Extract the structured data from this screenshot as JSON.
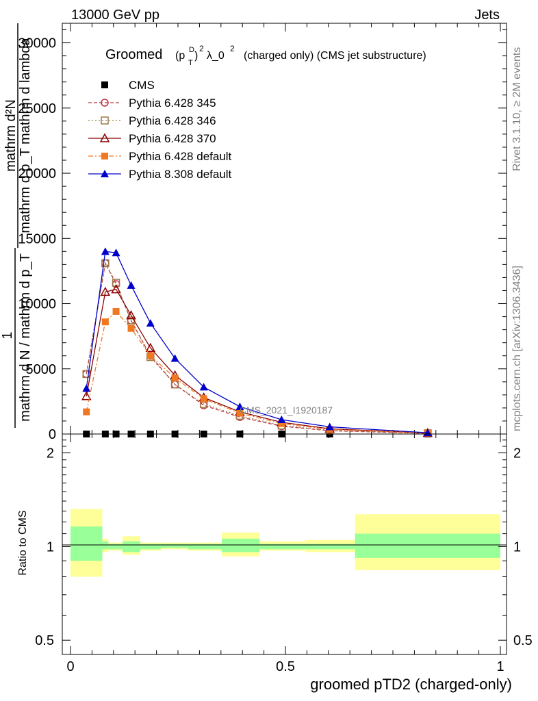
{
  "header": {
    "energy_label": "13000 GeV pp",
    "category_label": "Jets",
    "title_prefix": "Groomed",
    "title_formula": "(p",
    "title_sup_d": "D",
    "title_sub_t": "T",
    "title_close": ")",
    "title_sq": "2",
    "title_lambda": "λ_0",
    "title_lambda_sq": "2",
    "title_suffix": "(charged only) (CMS jet substructure)",
    "analysis_tag": "CMS_2021_I1920187"
  },
  "side_labels": {
    "rivet": "Rivet 3.1.10, ≥ 2M events",
    "mcplots": "mcplots.cern.ch [arXiv:1306.3436]"
  },
  "axes": {
    "y_main_label_lines": [
      "mathrm d²N",
      "mathrm d p_T mathrm d lambda",
      "1",
      "mathrm d N / mathrm d p_T"
    ],
    "y_ratio_label": "Ratio to CMS",
    "x_label": "groomed pTD2 (charged-only)",
    "x_ticks": [
      "0",
      "0.5",
      "1"
    ],
    "y_main_ticks": [
      "0",
      "5000",
      "10000",
      "15000",
      "20000",
      "25000",
      "30000"
    ],
    "y_ratio_ticks": [
      "0.5",
      "1",
      "2"
    ]
  },
  "chart_data": {
    "type": "line",
    "x_range": [
      0,
      1
    ],
    "main_ylim": [
      0,
      31500
    ],
    "ratio_ylim": [
      0.45,
      2.3
    ],
    "ratio_log": true,
    "x": [
      0.037,
      0.081,
      0.106,
      0.141,
      0.186,
      0.243,
      0.31,
      0.394,
      0.491,
      0.603,
      0.831
    ],
    "bin_edges": [
      0.0,
      0.074,
      0.088,
      0.121,
      0.162,
      0.21,
      0.273,
      0.352,
      0.44,
      0.546,
      0.662,
      1.0
    ],
    "series": [
      {
        "name": "CMS",
        "color": "#000000",
        "marker": "square-filled",
        "dash": "",
        "values": [
          0,
          0,
          0,
          0,
          0,
          0,
          0,
          0,
          0,
          0,
          0
        ]
      },
      {
        "name": "Pythia 6.428 345",
        "color": "#c03040",
        "marker": "circle-open",
        "dash": "5,3",
        "values": [
          4600,
          13100,
          11500,
          8700,
          6000,
          3800,
          2200,
          1300,
          600,
          250,
          50
        ]
      },
      {
        "name": "Pythia 6.428 346",
        "color": "#9b7a4a",
        "marker": "square-open",
        "dash": "2,3",
        "values": [
          4600,
          13100,
          11600,
          8700,
          5900,
          3800,
          2300,
          1400,
          650,
          280,
          60
        ]
      },
      {
        "name": "Pythia 6.428 370",
        "color": "#8b0000",
        "marker": "triangle-open",
        "dash": "",
        "values": [
          2900,
          10900,
          11100,
          9100,
          6600,
          4500,
          2800,
          1700,
          900,
          400,
          80
        ]
      },
      {
        "name": "Pythia 6.428 default",
        "color": "#f07820",
        "marker": "square-filled",
        "dash": "7,3,2,3",
        "values": [
          1700,
          8600,
          9400,
          8100,
          6000,
          4300,
          2700,
          1600,
          800,
          350,
          70
        ]
      },
      {
        "name": "Pythia 8.308 default",
        "color": "#0000cc",
        "marker": "triangle-filled",
        "dash": "",
        "values": [
          3500,
          14000,
          13900,
          11400,
          8500,
          5800,
          3600,
          2100,
          1100,
          550,
          100
        ]
      }
    ],
    "ratio_bands": {
      "green": [
        [
          0.9,
          1.16
        ],
        [
          0.98,
          1.04
        ],
        [
          0.98,
          1.02
        ],
        [
          0.96,
          1.04
        ],
        [
          0.98,
          1.02
        ],
        [
          0.99,
          1.02
        ],
        [
          0.98,
          1.02
        ],
        [
          0.96,
          1.06
        ],
        [
          0.98,
          1.02
        ],
        [
          0.98,
          1.02
        ],
        [
          0.92,
          1.1
        ]
      ],
      "yellow": [
        [
          0.8,
          1.32
        ],
        [
          0.96,
          1.06
        ],
        [
          0.97,
          1.03
        ],
        [
          0.94,
          1.08
        ],
        [
          0.97,
          1.03
        ],
        [
          0.98,
          1.03
        ],
        [
          0.97,
          1.03
        ],
        [
          0.93,
          1.11
        ],
        [
          0.97,
          1.04
        ],
        [
          0.96,
          1.05
        ],
        [
          0.84,
          1.27
        ]
      ]
    },
    "legend_position": "top-left",
    "grid": false
  }
}
